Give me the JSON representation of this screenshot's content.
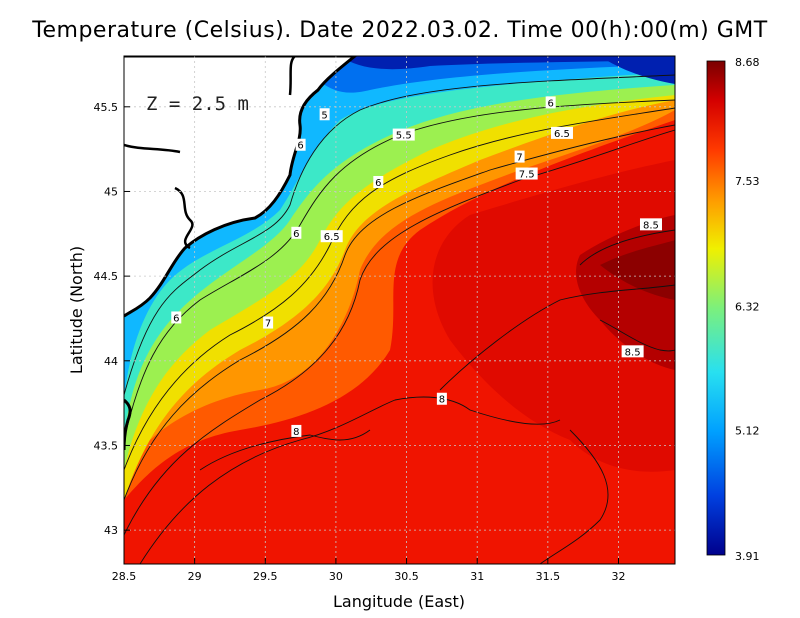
{
  "title": "Temperature (Celsius). Date 2022.03.02. Time 00(h):00(m)  GMT",
  "depth_label": "Z = 2.5 m",
  "x_axis": {
    "label": "Langitude (East)",
    "ticks": [
      "28.5",
      "29",
      "29.5",
      "30",
      "30.5",
      "31",
      "31.5",
      "32"
    ],
    "range": [
      28.5,
      32.4
    ]
  },
  "y_axis": {
    "label": "Latitude (North)",
    "ticks": [
      "43",
      "43.5",
      "44",
      "44.5",
      "45",
      "45.5"
    ],
    "range": [
      42.8,
      45.8
    ]
  },
  "colorbar": {
    "min": 3.91,
    "max": 8.68,
    "tick_labels": [
      "8.68",
      "7.53",
      "6.32",
      "5.12",
      "3.91"
    ],
    "colors": [
      "#7a0000",
      "#d40000",
      "#ff3a00",
      "#ff9a00",
      "#f0f000",
      "#7cf07c",
      "#28e0f0",
      "#00a0ff",
      "#0040e0",
      "#00008c"
    ]
  },
  "contour_labels": [
    {
      "text": "5",
      "lon": 29.92,
      "lat": 45.45
    },
    {
      "text": "6",
      "lon": 29.75,
      "lat": 45.27
    },
    {
      "text": "5.5",
      "lon": 30.48,
      "lat": 45.33
    },
    {
      "text": "6",
      "lon": 31.52,
      "lat": 45.52
    },
    {
      "text": "6.5",
      "lon": 31.6,
      "lat": 45.34
    },
    {
      "text": "7",
      "lon": 31.3,
      "lat": 45.2
    },
    {
      "text": "7.5",
      "lon": 31.35,
      "lat": 45.1
    },
    {
      "text": "6",
      "lon": 30.3,
      "lat": 45.05
    },
    {
      "text": "6",
      "lon": 29.72,
      "lat": 44.75
    },
    {
      "text": "6.5",
      "lon": 29.97,
      "lat": 44.73
    },
    {
      "text": "8.5",
      "lon": 32.23,
      "lat": 44.8
    },
    {
      "text": "6",
      "lon": 28.87,
      "lat": 44.25
    },
    {
      "text": "7",
      "lon": 29.52,
      "lat": 44.22
    },
    {
      "text": "8.5",
      "lon": 32.1,
      "lat": 44.05
    },
    {
      "text": "8",
      "lon": 30.75,
      "lat": 43.77
    },
    {
      "text": "8",
      "lon": 29.72,
      "lat": 43.58
    }
  ],
  "chart_data": {
    "type": "heatmap",
    "variable": "Temperature (Celsius)",
    "date": "2022.03.02",
    "time": "00(h):00(m) GMT",
    "depth": "Z = 2.5 m",
    "x_range": [
      28.5,
      32.4
    ],
    "y_range": [
      42.8,
      45.8
    ],
    "value_range": [
      3.91,
      8.68
    ],
    "contour_levels": [
      5,
      5.5,
      6,
      6.5,
      7,
      7.5,
      8,
      8.5
    ],
    "warm_core_centers": [
      {
        "lon": 32.1,
        "lat": 44.6,
        "value": 8.6
      },
      {
        "lon": 31.9,
        "lat": 44.1,
        "value": 8.5
      }
    ]
  }
}
